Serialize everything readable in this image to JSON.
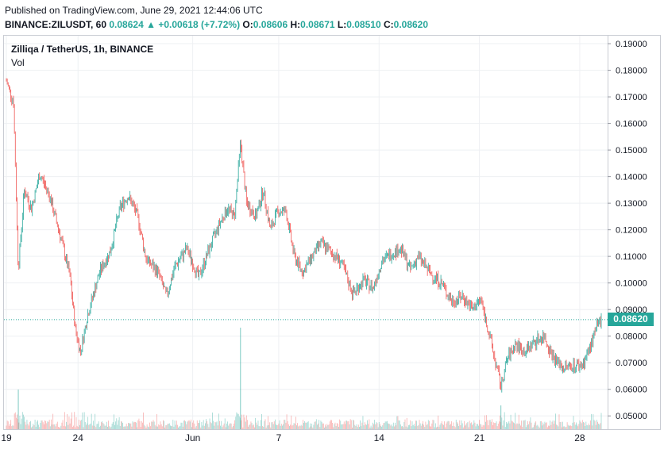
{
  "header": {
    "published": "Published on TradingView.com, June 29, 2021 12:44:06 UTC",
    "symbol_line_prefix": "BINANCE:ZILUSDT, 60",
    "last": "0.08624",
    "change": "+0.00618 (+7.72%)",
    "o_label": "O:",
    "o": "0.08606",
    "h_label": "H:",
    "h": "0.08671",
    "l_label": "L:",
    "l": "0.08510",
    "c_label": "C:",
    "c": "0.08620"
  },
  "legend": {
    "title": "Zilliqa / TetherUS, 1h, BINANCE",
    "vol": "Vol"
  },
  "price_tag": "0.08620",
  "colors": {
    "up": "#26a69a",
    "down": "#ef5350",
    "grid": "#eef0f3",
    "last_line": "#26a69a"
  },
  "chart_data": {
    "type": "candlestick",
    "title": "Zilliqa / TetherUS, 1h, BINANCE",
    "ylim": [
      0.045,
      0.193
    ],
    "y_ticks": [
      "0.19000",
      "0.18000",
      "0.17000",
      "0.16000",
      "0.15000",
      "0.14000",
      "0.13000",
      "0.12000",
      "0.11000",
      "0.10000",
      "0.09000",
      "0.08000",
      "0.07000",
      "0.06000",
      "0.05000"
    ],
    "x_ticks": [
      {
        "label": "19",
        "date": "2021-05-19"
      },
      {
        "label": "24",
        "date": "2021-05-24"
      },
      {
        "label": "Jun",
        "date": "2021-06-01"
      },
      {
        "label": "7",
        "date": "2021-06-07"
      },
      {
        "label": "14",
        "date": "2021-06-14"
      },
      {
        "label": "21",
        "date": "2021-06-21"
      },
      {
        "label": "28",
        "date": "2021-06-28"
      }
    ],
    "xlim": [
      "2021-05-19T00:00",
      "2021-06-29T12:00"
    ],
    "last_price": 0.0862,
    "path": [
      [
        "2021-05-19T00:00",
        0.176
      ],
      [
        "2021-05-19T12:00",
        0.168
      ],
      [
        "2021-05-19T20:00",
        0.105
      ],
      [
        "2021-05-20T06:00",
        0.135
      ],
      [
        "2021-05-20T18:00",
        0.128
      ],
      [
        "2021-05-21T08:00",
        0.141
      ],
      [
        "2021-05-22T00:00",
        0.133
      ],
      [
        "2021-05-22T18:00",
        0.118
      ],
      [
        "2021-05-23T10:00",
        0.103
      ],
      [
        "2021-05-23T20:00",
        0.082
      ],
      [
        "2021-05-24T04:00",
        0.074
      ],
      [
        "2021-05-24T16:00",
        0.088
      ],
      [
        "2021-05-25T12:00",
        0.104
      ],
      [
        "2021-05-26T06:00",
        0.112
      ],
      [
        "2021-05-26T22:00",
        0.128
      ],
      [
        "2021-05-27T12:00",
        0.133
      ],
      [
        "2021-05-28T04:00",
        0.125
      ],
      [
        "2021-05-28T18:00",
        0.109
      ],
      [
        "2021-05-29T14:00",
        0.104
      ],
      [
        "2021-05-30T04:00",
        0.095
      ],
      [
        "2021-05-30T18:00",
        0.106
      ],
      [
        "2021-05-31T14:00",
        0.113
      ],
      [
        "2021-06-01T10:00",
        0.102
      ],
      [
        "2021-06-02T04:00",
        0.113
      ],
      [
        "2021-06-02T20:00",
        0.122
      ],
      [
        "2021-06-03T10:00",
        0.128
      ],
      [
        "2021-06-03T22:00",
        0.125
      ],
      [
        "2021-06-04T08:00",
        0.153
      ],
      [
        "2021-06-04T18:00",
        0.13
      ],
      [
        "2021-06-05T10:00",
        0.125
      ],
      [
        "2021-06-05T22:00",
        0.135
      ],
      [
        "2021-06-06T10:00",
        0.12
      ],
      [
        "2021-06-06T22:00",
        0.127
      ],
      [
        "2021-06-07T12:00",
        0.127
      ],
      [
        "2021-06-08T02:00",
        0.11
      ],
      [
        "2021-06-08T16:00",
        0.104
      ],
      [
        "2021-06-09T08:00",
        0.11
      ],
      [
        "2021-06-09T22:00",
        0.115
      ],
      [
        "2021-06-10T14:00",
        0.112
      ],
      [
        "2021-06-11T08:00",
        0.108
      ],
      [
        "2021-06-12T04:00",
        0.096
      ],
      [
        "2021-06-12T22:00",
        0.101
      ],
      [
        "2021-06-13T14:00",
        0.098
      ],
      [
        "2021-06-14T04:00",
        0.108
      ],
      [
        "2021-06-14T20:00",
        0.111
      ],
      [
        "2021-06-15T12:00",
        0.113
      ],
      [
        "2021-06-16T04:00",
        0.105
      ],
      [
        "2021-06-16T18:00",
        0.11
      ],
      [
        "2021-06-17T12:00",
        0.104
      ],
      [
        "2021-06-18T08:00",
        0.1
      ],
      [
        "2021-06-19T02:00",
        0.093
      ],
      [
        "2021-06-19T20:00",
        0.095
      ],
      [
        "2021-06-20T12:00",
        0.09
      ],
      [
        "2021-06-21T02:00",
        0.094
      ],
      [
        "2021-06-21T12:00",
        0.085
      ],
      [
        "2021-06-22T00:00",
        0.073
      ],
      [
        "2021-06-22T12:00",
        0.061
      ],
      [
        "2021-06-22T22:00",
        0.071
      ],
      [
        "2021-06-23T12:00",
        0.077
      ],
      [
        "2021-06-24T04:00",
        0.074
      ],
      [
        "2021-06-24T20:00",
        0.078
      ],
      [
        "2021-06-25T12:00",
        0.08
      ],
      [
        "2021-06-26T04:00",
        0.072
      ],
      [
        "2021-06-26T20:00",
        0.068
      ],
      [
        "2021-06-27T12:00",
        0.069
      ],
      [
        "2021-06-28T04:00",
        0.069
      ],
      [
        "2021-06-28T16:00",
        0.075
      ],
      [
        "2021-06-29T04:00",
        0.083
      ],
      [
        "2021-06-29T12:00",
        0.0862
      ]
    ]
  }
}
